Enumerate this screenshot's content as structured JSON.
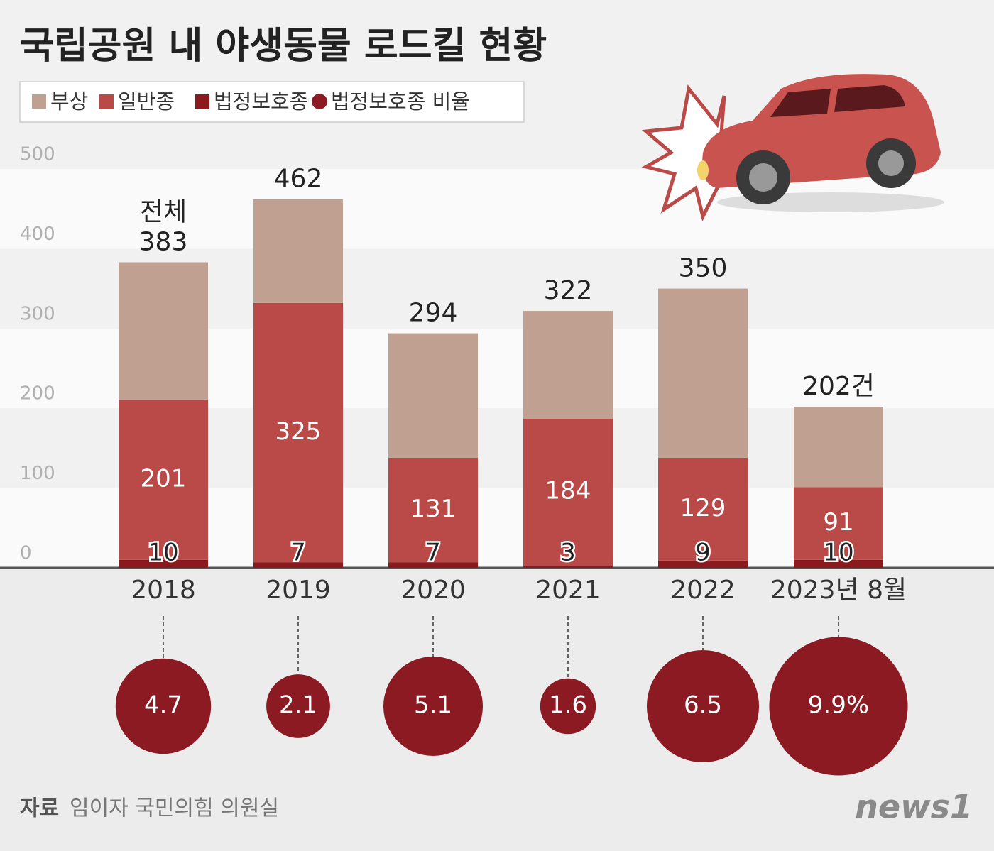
{
  "chart_data": {
    "type": "bar",
    "stacked": true,
    "title": "국립공원 내 야생동물 로드킬 현황",
    "categories": [
      "2018",
      "2019",
      "2020",
      "2021",
      "2022",
      "2023년 8월"
    ],
    "series": [
      {
        "name": "부상",
        "color": "#bfa091",
        "values": [
          172,
          130,
          156,
          135,
          212,
          101
        ]
      },
      {
        "name": "일반종",
        "color": "#b94a48",
        "values": [
          201,
          325,
          131,
          184,
          129,
          91
        ]
      },
      {
        "name": "법정보호종",
        "color": "#8b1a1f",
        "values": [
          10,
          7,
          7,
          3,
          9,
          10
        ]
      }
    ],
    "totals": {
      "values": [
        383,
        462,
        294,
        322,
        350,
        202
      ],
      "value_labels": [
        "383",
        "462",
        "294",
        "322",
        "350",
        "202건"
      ]
    },
    "total_caption": "전체",
    "ratio": {
      "name": "법정보호종 비율",
      "color": "#8b1a22",
      "values": [
        4.7,
        2.1,
        5.1,
        1.6,
        6.5,
        9.9
      ],
      "value_labels": [
        "4.7",
        "2.1",
        "5.1",
        "1.6",
        "6.5",
        "9.9%"
      ]
    },
    "ylim": [
      0,
      500
    ],
    "yticks": [
      0,
      100,
      200,
      300,
      400,
      500
    ],
    "grid": true,
    "source_label": "자료",
    "source": "임이자 국민의힘 의원실",
    "logo": "news1"
  }
}
